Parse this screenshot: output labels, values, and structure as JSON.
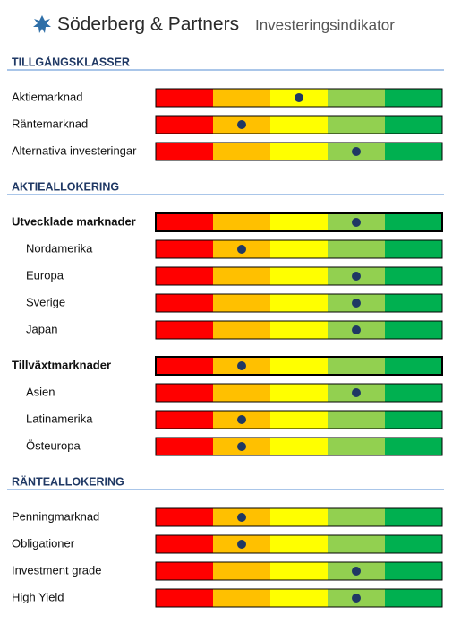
{
  "header": {
    "brand": "Söderberg & Partners",
    "title": "Investeringsindikator"
  },
  "sections": [
    {
      "title": "TILLGÅNGSKLASSER",
      "rows": [
        {
          "label": "Aktiemarknad",
          "level": 3
        },
        {
          "label": "Räntemarknad",
          "level": 2
        },
        {
          "label": "Alternativa investeringar",
          "level": 4
        }
      ]
    },
    {
      "title": "AKTIEALLOKERING",
      "rows": [
        {
          "label": "Utvecklade marknader",
          "level": 4,
          "bold": true
        },
        {
          "label": "Nordamerika",
          "level": 2,
          "indent": true
        },
        {
          "label": "Europa",
          "level": 4,
          "indent": true
        },
        {
          "label": "Sverige",
          "level": 4,
          "indent": true
        },
        {
          "label": "Japan",
          "level": 4,
          "indent": true
        },
        {
          "label": "Tillväxtmarknader",
          "level": 2,
          "bold": true
        },
        {
          "label": "Asien",
          "level": 4,
          "indent": true
        },
        {
          "label": "Latinamerika",
          "level": 2,
          "indent": true
        },
        {
          "label": "Östeuropa",
          "level": 2,
          "indent": true
        }
      ]
    },
    {
      "title": "RÄNTEALLOKERING",
      "rows": [
        {
          "label": "Penningmarknad",
          "level": 2
        },
        {
          "label": "Obligationer",
          "level": 2
        },
        {
          "label": "Investment grade",
          "level": 4
        },
        {
          "label": "High Yield",
          "level": 4
        }
      ]
    }
  ],
  "segment_colors": [
    "#ff0000",
    "#ffc000",
    "#ffff00",
    "#92d050",
    "#00b050"
  ],
  "dot_color": "#1f3864"
}
